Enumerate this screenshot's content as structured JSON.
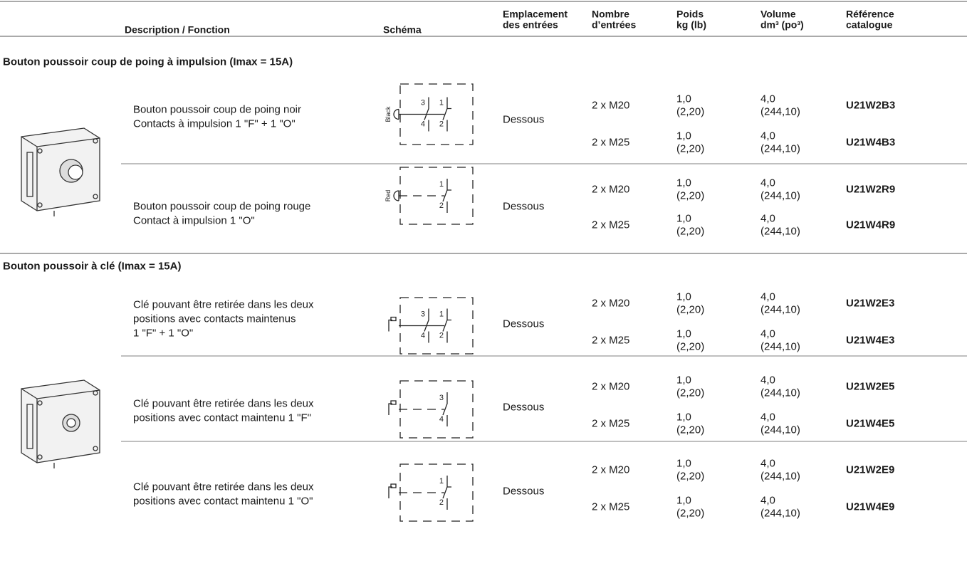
{
  "header": {
    "columns": [
      [
        "Description / Fonction"
      ],
      [
        "Schéma"
      ],
      [
        "Emplacement",
        "des entrées"
      ],
      [
        "Nombre",
        "d’entrées"
      ],
      [
        "Poids",
        "kg (lb)"
      ],
      [
        "Volume",
        "dm³ (po³)"
      ],
      [
        "Référence",
        "catalogue"
      ]
    ]
  },
  "sections": [
    {
      "title": "Bouton poussoir coup de poing à impulsion (Imax = 15A)",
      "groups": [
        {
          "description": [
            "Bouton poussoir coup de poing noir",
            "Contacts à impulsion 1 \"F\" + 1 \"O\""
          ],
          "schema": {
            "label": "Black",
            "contacts": [
              [
                "3",
                "4"
              ],
              [
                "1",
                "2"
              ]
            ]
          },
          "location": "Dessous",
          "rows": [
            {
              "entries": "2 x M20",
              "weight": [
                "1,0",
                "(2,20)"
              ],
              "volume": [
                "4,0",
                "(244,10)"
              ],
              "reference": "U21W2B3"
            },
            {
              "entries": "2 x M25",
              "weight": [
                "1,0",
                "(2,20)"
              ],
              "volume": [
                "4,0",
                "(244,10)"
              ],
              "reference": "U21W4B3"
            }
          ]
        },
        {
          "description": [
            "Bouton poussoir coup de poing rouge",
            "Contact à impulsion 1 \"O\""
          ],
          "schema": {
            "label": "Red",
            "contacts": [
              [
                "1",
                "2"
              ]
            ]
          },
          "location": "Dessous",
          "rows": [
            {
              "entries": "2 x M20",
              "weight": [
                "1,0",
                "(2,20)"
              ],
              "volume": [
                "4,0",
                "(244,10)"
              ],
              "reference": "U21W2R9"
            },
            {
              "entries": "2 x M25",
              "weight": [
                "1,0",
                "(2,20)"
              ],
              "volume": [
                "4,0",
                "(244,10)"
              ],
              "reference": "U21W4R9"
            }
          ]
        }
      ]
    },
    {
      "title": "Bouton poussoir à clé (Imax = 15A)",
      "groups": [
        {
          "description": [
            "Clé pouvant être retirée dans les deux",
            "positions avec contacts maintenus",
            "1 \"F\" + 1 \"O\""
          ],
          "schema": {
            "contacts": [
              [
                "3",
                "4"
              ],
              [
                "1",
                "2"
              ]
            ]
          },
          "location": "Dessous",
          "rows": [
            {
              "entries": "2 x M20",
              "weight": [
                "1,0",
                "(2,20)"
              ],
              "volume": [
                "4,0",
                "(244,10)"
              ],
              "reference": "U21W2E3"
            },
            {
              "entries": "2 x M25",
              "weight": [
                "1,0",
                "(2,20)"
              ],
              "volume": [
                "4,0",
                "(244,10)"
              ],
              "reference": "U21W4E3"
            }
          ]
        },
        {
          "description": [
            "Clé pouvant être retirée dans les deux",
            "positions avec contact maintenu 1 \"F\""
          ],
          "schema": {
            "contacts": [
              [
                "3",
                "4"
              ]
            ]
          },
          "location": "Dessous",
          "rows": [
            {
              "entries": "2 x M20",
              "weight": [
                "1,0",
                "(2,20)"
              ],
              "volume": [
                "4,0",
                "(244,10)"
              ],
              "reference": "U21W2E5"
            },
            {
              "entries": "2 x M25",
              "weight": [
                "1,0",
                "(2,20)"
              ],
              "volume": [
                "4,0",
                "(244,10)"
              ],
              "reference": "U21W4E5"
            }
          ]
        },
        {
          "description": [
            "Clé pouvant être retirée dans les deux",
            "positions avec contact maintenu 1 \"O\""
          ],
          "schema": {
            "contacts": [
              [
                "1",
                "2"
              ]
            ]
          },
          "location": "Dessous",
          "rows": [
            {
              "entries": "2 x M20",
              "weight": [
                "1,0",
                "(2,20)"
              ],
              "volume": [
                "4,0",
                "(244,10)"
              ],
              "reference": "U21W2E9"
            },
            {
              "entries": "2 x M25",
              "weight": [
                "1,0",
                "(2,20)"
              ],
              "volume": [
                "4,0",
                "(244,10)"
              ],
              "reference": "U21W4E9"
            }
          ]
        }
      ]
    }
  ]
}
